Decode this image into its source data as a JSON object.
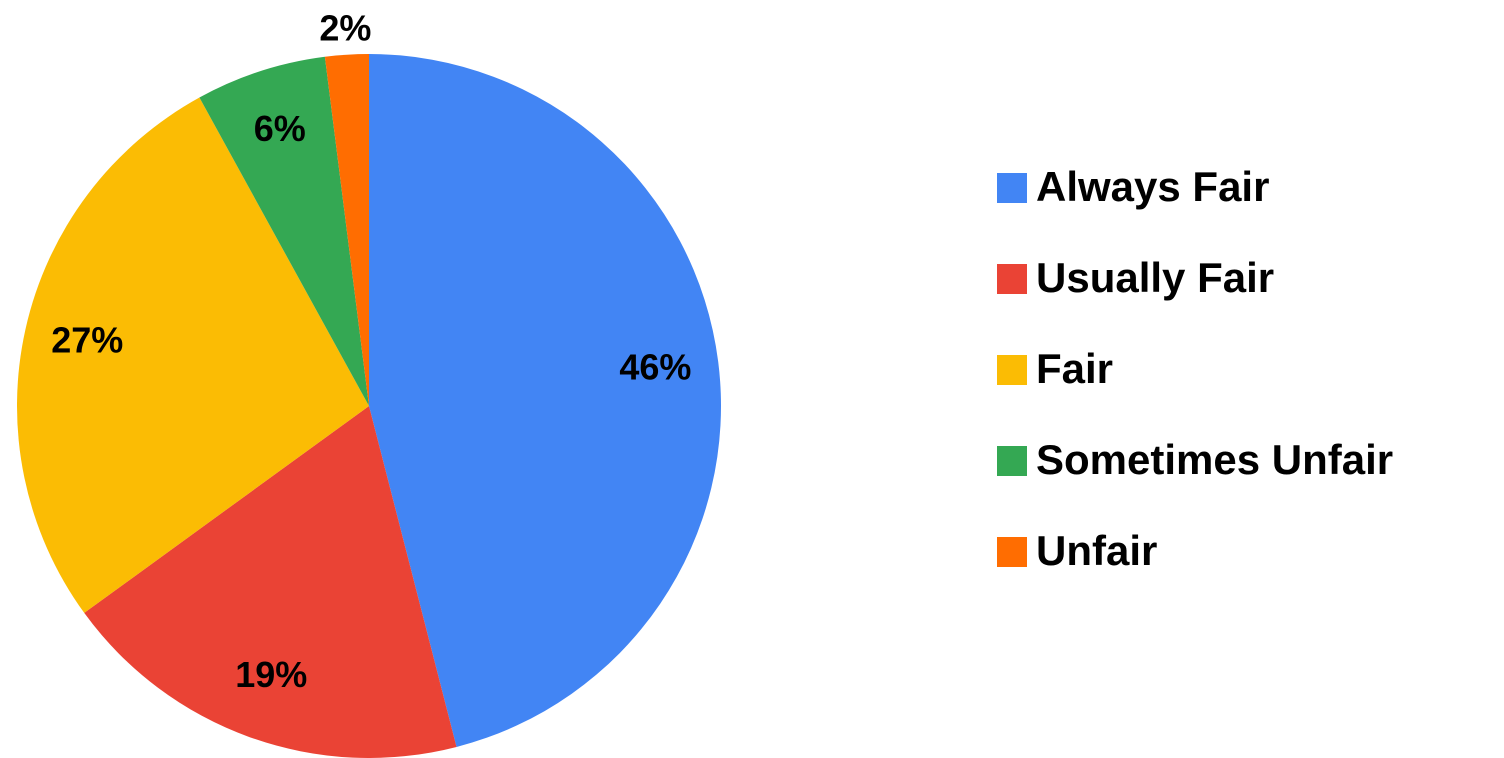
{
  "chart_data": {
    "type": "pie",
    "categories": [
      "Always Fair",
      "Usually Fair",
      "Fair",
      "Sometimes Unfair",
      "Unfair"
    ],
    "values": [
      46,
      19,
      27,
      6,
      2
    ],
    "value_labels": [
      "46%",
      "19%",
      "27%",
      "6%",
      "2%"
    ],
    "colors": [
      "#4285f4",
      "#ea4335",
      "#fbbc04",
      "#34a853",
      "#ff6d01"
    ],
    "legend": "right"
  }
}
